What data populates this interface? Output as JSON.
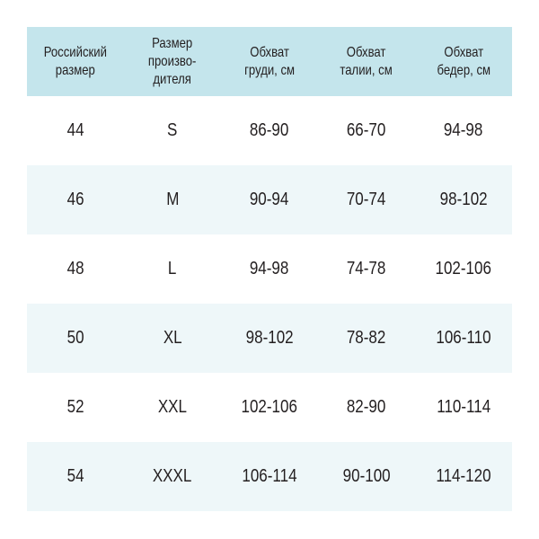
{
  "colors": {
    "header_bg": "#c4e5ec",
    "alt_row_bg": "#eef7f9",
    "text": "#231f20"
  },
  "headers": [
    "Российский\nразмер",
    "Размер\nпроизво-\nдителя",
    "Обхват\nгруди, см",
    "Обхват\nталии, см",
    "Обхват\nбедер, см"
  ],
  "rows": [
    [
      "44",
      "S",
      "86-90",
      "66-70",
      "94-98"
    ],
    [
      "46",
      "M",
      "90-94",
      "70-74",
      "98-102"
    ],
    [
      "48",
      "L",
      "94-98",
      "74-78",
      "102-106"
    ],
    [
      "50",
      "XL",
      "98-102",
      "78-82",
      "106-110"
    ],
    [
      "52",
      "XXL",
      "102-106",
      "82-90",
      "110-114"
    ],
    [
      "54",
      "XXXL",
      "106-114",
      "90-100",
      "114-120"
    ]
  ]
}
